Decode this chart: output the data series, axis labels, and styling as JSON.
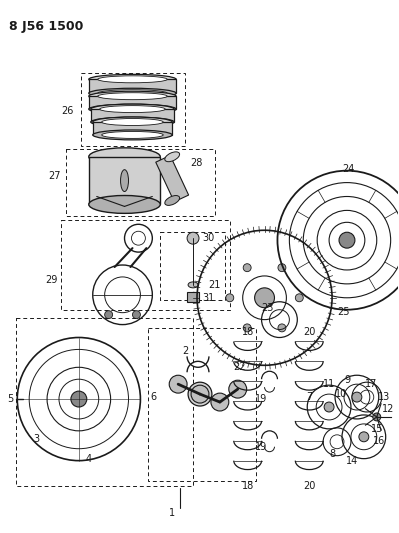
{
  "title": "8 J56 1500",
  "bg": "#f5f5f0",
  "lc": "#1a1a1a",
  "fig_w": 3.99,
  "fig_h": 5.33,
  "dpi": 100
}
